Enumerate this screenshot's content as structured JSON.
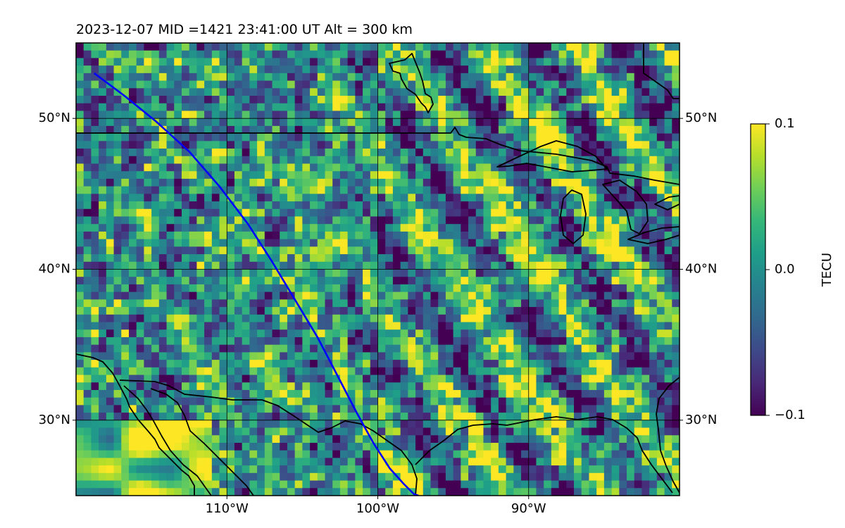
{
  "title": "2023-12-07  MID =1421    23:41:00  UT  Alt = 300 km",
  "map": {
    "lon_range": [
      -120,
      -80
    ],
    "lat_range": [
      25,
      55
    ],
    "x_ticks": [
      {
        "lon": -110,
        "label": "110°W"
      },
      {
        "lon": -100,
        "label": "100°W"
      },
      {
        "lon": -90,
        "label": "90°W"
      }
    ],
    "y_ticks": [
      {
        "lat": 30,
        "label": "30°N"
      },
      {
        "lat": 40,
        "label": "40°N"
      },
      {
        "lat": 50,
        "label": "50°N"
      }
    ],
    "grid": true,
    "field_cell_deg": 0.5,
    "field_description": "differential TEC perturbation map with NW-SE banded wave structures",
    "satellite_track": {
      "color": "#0000ff",
      "lons": [
        -118.8,
        -116.8,
        -114.7,
        -112.5,
        -110.5,
        -108.6,
        -107.0,
        -105.5,
        -104.0,
        -102.7,
        -101.4,
        -100.3,
        -99.2,
        -98.3,
        -97.6,
        -97.3
      ],
      "lats": [
        53.0,
        51.5,
        49.8,
        47.8,
        45.5,
        43.0,
        40.5,
        38.0,
        35.5,
        33.0,
        30.5,
        28.5,
        26.8,
        25.8,
        25.1,
        25.0
      ]
    },
    "boundary_color": "#000000"
  },
  "colorbar": {
    "label": "TECU",
    "min": -0.1,
    "max": 0.1,
    "ticks": [
      {
        "value": 0.1,
        "label": "0.1"
      },
      {
        "value": 0.0,
        "label": "0.0"
      },
      {
        "value": -0.1,
        "label": "−0.1"
      }
    ],
    "colormap": "viridis",
    "stops": [
      "#440154",
      "#482878",
      "#3e4989",
      "#31688e",
      "#26828e",
      "#1f9e89",
      "#35b779",
      "#6ece58",
      "#b5de2b",
      "#fde725"
    ]
  }
}
